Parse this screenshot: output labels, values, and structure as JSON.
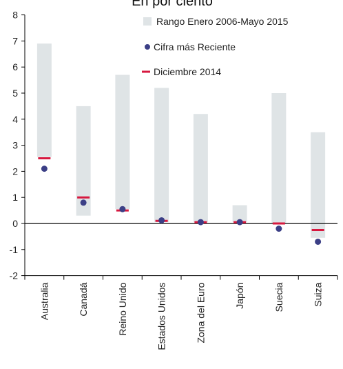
{
  "chart_data": {
    "type": "range",
    "title": "En por ciento",
    "categories": [
      "Australia",
      "Canadá",
      "Reino Unido",
      "Estados Unidos",
      "Zona del Euro",
      "Japón",
      "Suecia",
      "Suiza"
    ],
    "range_low": [
      2.55,
      0.3,
      0.55,
      0.05,
      0.05,
      0.05,
      0.0,
      -0.55
    ],
    "range_high": [
      6.9,
      4.5,
      5.7,
      5.2,
      4.2,
      0.7,
      5.0,
      3.5
    ],
    "recent": [
      2.1,
      0.8,
      0.55,
      0.12,
      0.05,
      0.05,
      -0.2,
      -0.7
    ],
    "dec2014": [
      2.5,
      1.0,
      0.5,
      0.1,
      0.05,
      0.05,
      0.0,
      -0.25
    ],
    "legend": {
      "range": "Rango Enero 2006-Mayo 2015",
      "recent": "Cifra más Reciente",
      "dec2014": "Diciembre 2014"
    },
    "ylim": [
      -2,
      8
    ],
    "yticks": [
      "-2",
      "-1",
      "0",
      "1",
      "2",
      "3",
      "4",
      "5",
      "6",
      "7",
      "8"
    ],
    "colors": {
      "range": "#dfe4e6",
      "recent": "#3b3f86",
      "dec2014": "#d7183f",
      "axis": "#000000"
    }
  }
}
